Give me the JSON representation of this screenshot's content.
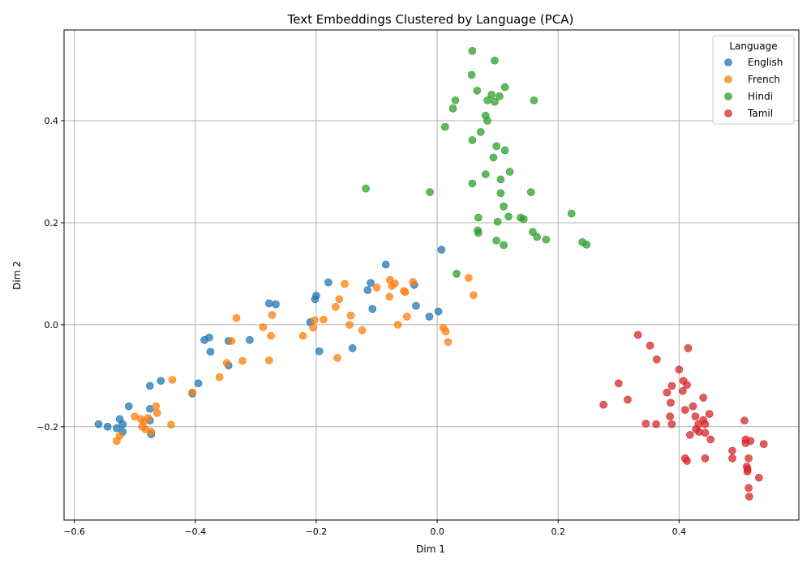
{
  "chart_data": {
    "type": "scatter",
    "title": "Text Embeddings Clustered by Language (PCA)",
    "xlabel": "Dim 1",
    "ylabel": "Dim 2",
    "xlim": [
      -0.617,
      0.598
    ],
    "ylim": [
      -0.383,
      0.578
    ],
    "xticks": [
      -0.6,
      -0.4,
      -0.2,
      0.0,
      0.2,
      0.4
    ],
    "yticks": [
      -0.2,
      0.0,
      0.2,
      0.4
    ],
    "xtick_labels": [
      "−0.6",
      "−0.4",
      "−0.2",
      "0.0",
      "0.2",
      "0.4"
    ],
    "ytick_labels": [
      "−0.2",
      "0.0",
      "0.2",
      "0.4"
    ],
    "grid": true,
    "legend": {
      "title": "Language",
      "placement": "top-right"
    },
    "series": [
      {
        "name": "English",
        "color": "#1f77b4",
        "points": [
          [
            -0.56,
            -0.195
          ],
          [
            -0.545,
            -0.2
          ],
          [
            -0.53,
            -0.203
          ],
          [
            -0.525,
            -0.185
          ],
          [
            -0.52,
            -0.195
          ],
          [
            -0.52,
            -0.21
          ],
          [
            -0.51,
            -0.16
          ],
          [
            -0.475,
            -0.12
          ],
          [
            -0.475,
            -0.165
          ],
          [
            -0.475,
            -0.188
          ],
          [
            -0.473,
            -0.215
          ],
          [
            -0.457,
            -0.11
          ],
          [
            -0.405,
            -0.135
          ],
          [
            -0.395,
            -0.115
          ],
          [
            -0.385,
            -0.03
          ],
          [
            -0.377,
            -0.025
          ],
          [
            -0.375,
            -0.053
          ],
          [
            -0.345,
            -0.08
          ],
          [
            -0.345,
            -0.032
          ],
          [
            -0.31,
            -0.03
          ],
          [
            -0.278,
            0.042
          ],
          [
            -0.267,
            0.04
          ],
          [
            -0.21,
            0.005
          ],
          [
            -0.202,
            0.05
          ],
          [
            -0.2,
            0.057
          ],
          [
            -0.195,
            -0.052
          ],
          [
            -0.18,
            0.083
          ],
          [
            -0.14,
            -0.046
          ],
          [
            -0.115,
            0.068
          ],
          [
            -0.11,
            0.082
          ],
          [
            -0.107,
            0.031
          ],
          [
            -0.085,
            0.118
          ],
          [
            -0.038,
            0.078
          ],
          [
            -0.035,
            0.037
          ],
          [
            -0.013,
            0.016
          ],
          [
            0.002,
            0.026
          ],
          [
            0.007,
            0.147
          ]
        ]
      },
      {
        "name": "French",
        "color": "#ff7f0e",
        "points": [
          [
            -0.53,
            -0.228
          ],
          [
            -0.525,
            -0.218
          ],
          [
            -0.5,
            -0.18
          ],
          [
            -0.49,
            -0.185
          ],
          [
            -0.488,
            -0.2
          ],
          [
            -0.485,
            -0.19
          ],
          [
            -0.482,
            -0.205
          ],
          [
            -0.478,
            -0.183
          ],
          [
            -0.473,
            -0.21
          ],
          [
            -0.465,
            -0.16
          ],
          [
            -0.463,
            -0.173
          ],
          [
            -0.44,
            -0.196
          ],
          [
            -0.438,
            -0.108
          ],
          [
            -0.405,
            -0.133
          ],
          [
            -0.36,
            -0.103
          ],
          [
            -0.348,
            -0.075
          ],
          [
            -0.34,
            -0.032
          ],
          [
            -0.332,
            0.013
          ],
          [
            -0.322,
            -0.071
          ],
          [
            -0.288,
            -0.005
          ],
          [
            -0.278,
            -0.07
          ],
          [
            -0.275,
            -0.022
          ],
          [
            -0.273,
            0.019
          ],
          [
            -0.222,
            -0.022
          ],
          [
            -0.205,
            -0.006
          ],
          [
            -0.203,
            0.009
          ],
          [
            -0.188,
            0.01
          ],
          [
            -0.168,
            0.035
          ],
          [
            -0.165,
            -0.065
          ],
          [
            -0.162,
            0.05
          ],
          [
            -0.153,
            0.08
          ],
          [
            -0.145,
            0.0
          ],
          [
            -0.143,
            0.018
          ],
          [
            -0.124,
            -0.011
          ],
          [
            -0.1,
            0.073
          ],
          [
            -0.079,
            0.055
          ],
          [
            -0.078,
            0.088
          ],
          [
            -0.075,
            0.076
          ],
          [
            -0.07,
            0.081
          ],
          [
            -0.065,
            0.0
          ],
          [
            -0.055,
            0.066
          ],
          [
            -0.053,
            0.064
          ],
          [
            -0.05,
            0.016
          ],
          [
            -0.04,
            0.084
          ],
          [
            0.01,
            -0.006
          ],
          [
            0.014,
            -0.013
          ],
          [
            0.018,
            -0.034
          ],
          [
            0.052,
            0.092
          ],
          [
            0.06,
            0.058
          ]
        ]
      },
      {
        "name": "Hindi",
        "color": "#2ca02c",
        "points": [
          [
            0.058,
            0.537
          ],
          [
            0.095,
            0.518
          ],
          [
            0.057,
            0.49
          ],
          [
            0.112,
            0.466
          ],
          [
            0.066,
            0.459
          ],
          [
            0.09,
            0.451
          ],
          [
            0.103,
            0.448
          ],
          [
            0.03,
            0.44
          ],
          [
            0.083,
            0.44
          ],
          [
            0.095,
            0.437
          ],
          [
            0.16,
            0.44
          ],
          [
            0.026,
            0.424
          ],
          [
            0.08,
            0.41
          ],
          [
            0.083,
            0.4
          ],
          [
            0.013,
            0.388
          ],
          [
            0.072,
            0.378
          ],
          [
            0.058,
            0.362
          ],
          [
            0.098,
            0.35
          ],
          [
            0.112,
            0.342
          ],
          [
            0.093,
            0.328
          ],
          [
            0.12,
            0.3
          ],
          [
            0.08,
            0.295
          ],
          [
            0.105,
            0.285
          ],
          [
            0.058,
            0.277
          ],
          [
            -0.118,
            0.267
          ],
          [
            -0.012,
            0.26
          ],
          [
            0.105,
            0.258
          ],
          [
            0.155,
            0.26
          ],
          [
            0.11,
            0.232
          ],
          [
            0.222,
            0.218
          ],
          [
            0.118,
            0.212
          ],
          [
            0.068,
            0.21
          ],
          [
            0.138,
            0.21
          ],
          [
            0.143,
            0.207
          ],
          [
            0.1,
            0.202
          ],
          [
            0.067,
            0.185
          ],
          [
            0.068,
            0.18
          ],
          [
            0.158,
            0.182
          ],
          [
            0.165,
            0.172
          ],
          [
            0.098,
            0.165
          ],
          [
            0.18,
            0.167
          ],
          [
            0.11,
            0.156
          ],
          [
            0.24,
            0.162
          ],
          [
            0.247,
            0.157
          ],
          [
            0.032,
            0.1
          ]
        ]
      },
      {
        "name": "Tamil",
        "color": "#d62728",
        "points": [
          [
            0.332,
            -0.02
          ],
          [
            0.352,
            -0.041
          ],
          [
            0.363,
            -0.068
          ],
          [
            0.415,
            -0.046
          ],
          [
            0.4,
            -0.088
          ],
          [
            0.3,
            -0.115
          ],
          [
            0.407,
            -0.11
          ],
          [
            0.413,
            -0.118
          ],
          [
            0.388,
            -0.12
          ],
          [
            0.38,
            -0.133
          ],
          [
            0.406,
            -0.13
          ],
          [
            0.44,
            -0.143
          ],
          [
            0.315,
            -0.147
          ],
          [
            0.275,
            -0.157
          ],
          [
            0.386,
            -0.153
          ],
          [
            0.423,
            -0.16
          ],
          [
            0.41,
            -0.167
          ],
          [
            0.385,
            -0.18
          ],
          [
            0.427,
            -0.18
          ],
          [
            0.45,
            -0.175
          ],
          [
            0.44,
            -0.187
          ],
          [
            0.345,
            -0.194
          ],
          [
            0.362,
            -0.195
          ],
          [
            0.388,
            -0.195
          ],
          [
            0.432,
            -0.195
          ],
          [
            0.443,
            -0.195
          ],
          [
            0.508,
            -0.188
          ],
          [
            0.428,
            -0.205
          ],
          [
            0.433,
            -0.21
          ],
          [
            0.443,
            -0.212
          ],
          [
            0.418,
            -0.216
          ],
          [
            0.452,
            -0.225
          ],
          [
            0.51,
            -0.225
          ],
          [
            0.518,
            -0.228
          ],
          [
            0.51,
            -0.232
          ],
          [
            0.54,
            -0.234
          ],
          [
            0.488,
            -0.247
          ],
          [
            0.41,
            -0.262
          ],
          [
            0.443,
            -0.262
          ],
          [
            0.488,
            -0.262
          ],
          [
            0.515,
            -0.262
          ],
          [
            0.413,
            -0.267
          ],
          [
            0.512,
            -0.278
          ],
          [
            0.513,
            -0.283
          ],
          [
            0.513,
            -0.288
          ],
          [
            0.532,
            -0.3
          ],
          [
            0.515,
            -0.32
          ],
          [
            0.516,
            -0.337
          ]
        ]
      }
    ]
  }
}
